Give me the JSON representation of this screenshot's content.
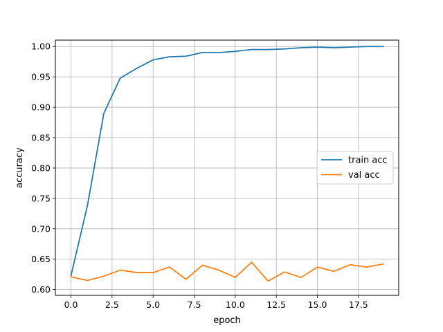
{
  "chart_data": {
    "type": "line",
    "title": "",
    "xlabel": "epoch",
    "ylabel": "accuracy",
    "xlim": [
      -0.95,
      19.95
    ],
    "ylim": [
      0.5905,
      1.0105
    ],
    "xticks": [
      0.0,
      2.5,
      5.0,
      7.5,
      10.0,
      12.5,
      15.0,
      17.5
    ],
    "xtick_labels": [
      "0.0",
      "2.5",
      "5.0",
      "7.5",
      "10.0",
      "12.5",
      "15.0",
      "17.5"
    ],
    "yticks": [
      0.6,
      0.65,
      0.7,
      0.75,
      0.8,
      0.85,
      0.9,
      0.95,
      1.0
    ],
    "ytick_labels": [
      "0.60",
      "0.65",
      "0.70",
      "0.75",
      "0.80",
      "0.85",
      "0.90",
      "0.95",
      "1.00"
    ],
    "grid": true,
    "legend_position": "center-right",
    "x": [
      0,
      1,
      2,
      3,
      4,
      5,
      6,
      7,
      8,
      9,
      10,
      11,
      12,
      13,
      14,
      15,
      16,
      17,
      18,
      19
    ],
    "series": [
      {
        "name": "train acc",
        "color": "#1f77b4",
        "values": [
          0.623,
          0.738,
          0.89,
          0.948,
          0.964,
          0.978,
          0.983,
          0.984,
          0.99,
          0.99,
          0.992,
          0.995,
          0.995,
          0.996,
          0.998,
          0.999,
          0.998,
          0.999,
          1.0,
          1.0
        ]
      },
      {
        "name": "val acc",
        "color": "#ff7f0e",
        "values": [
          0.621,
          0.615,
          0.622,
          0.632,
          0.628,
          0.628,
          0.637,
          0.617,
          0.64,
          0.632,
          0.62,
          0.645,
          0.614,
          0.629,
          0.62,
          0.637,
          0.63,
          0.641,
          0.637,
          0.642
        ]
      }
    ]
  }
}
